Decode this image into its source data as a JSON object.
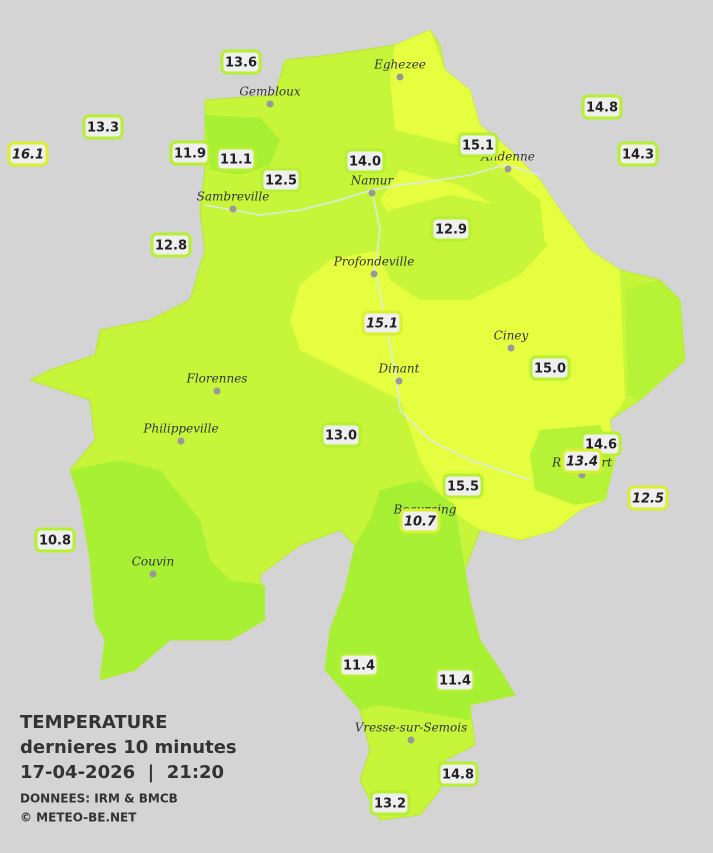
{
  "cities": [
    "Eghezee",
    "Gembloux",
    "Andenne",
    "Namur",
    "Sambreville",
    "Profondeville",
    "Ciney",
    "Dinant",
    "Florennes",
    "Philippeville",
    "Beauraing",
    "Rochefort",
    "Couvin",
    "Vresse-sur-Semois"
  ],
  "stations": [
    {
      "label": "13.6"
    },
    {
      "label": "13.3"
    },
    {
      "label": "16.1",
      "italic": true
    },
    {
      "label": "11.9"
    },
    {
      "label": "11.1"
    },
    {
      "label": "12.5"
    },
    {
      "label": "14.0"
    },
    {
      "label": "15.1"
    },
    {
      "label": "14.8"
    },
    {
      "label": "14.3"
    },
    {
      "label": "12.8"
    },
    {
      "label": "12.9"
    },
    {
      "label": "15.1",
      "italic": true
    },
    {
      "label": "15.0"
    },
    {
      "label": "13.0"
    },
    {
      "label": "14.6"
    },
    {
      "label": "13.4",
      "italic": true
    },
    {
      "label": "12.5",
      "italic": true
    },
    {
      "label": "15.5"
    },
    {
      "label": "10.7",
      "italic": true
    },
    {
      "label": "10.8"
    },
    {
      "label": "11.4"
    },
    {
      "label": "11.4"
    },
    {
      "label": "14.8"
    },
    {
      "label": "13.2"
    }
  ],
  "legend": {
    "title": "TEMPERATURE",
    "subtitle": "dernieres 10 minutes",
    "datetime": "17-04-2026  |  21:20",
    "source": "DONNEES: IRM & BMCB",
    "copyright": "© METEO-BE.NET"
  }
}
